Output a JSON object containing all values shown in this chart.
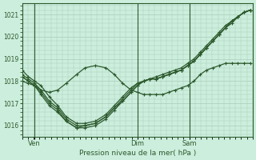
{
  "bg_color": "#cceedd",
  "grid_color": "#aaccbb",
  "line_color": "#2d5a2d",
  "xlabel": "Pression niveau de la mer( hPa )",
  "ylim": [
    1015.5,
    1021.5
  ],
  "yticks": [
    1016,
    1017,
    1018,
    1019,
    1020,
    1021
  ],
  "xtick_labels": [
    "Ven",
    "Dim",
    "Sam"
  ],
  "xtick_x": [
    6,
    55,
    80
  ],
  "xlim": [
    0,
    110
  ],
  "series": [
    {
      "x": [
        0,
        3,
        6,
        9,
        13,
        17,
        21,
        26,
        30,
        35,
        40,
        44,
        48,
        52,
        55,
        58,
        61,
        64,
        67,
        70,
        73,
        76,
        79,
        82,
        85,
        88,
        91,
        94,
        97,
        100,
        103,
        106,
        109
      ],
      "y": [
        1018.5,
        1018.2,
        1018.0,
        1017.8,
        1017.3,
        1016.9,
        1016.4,
        1016.1,
        1016.1,
        1016.2,
        1016.5,
        1016.9,
        1017.3,
        1017.7,
        1017.9,
        1018.0,
        1018.1,
        1018.2,
        1018.3,
        1018.4,
        1018.5,
        1018.6,
        1018.8,
        1019.0,
        1019.3,
        1019.6,
        1019.9,
        1020.2,
        1020.5,
        1020.7,
        1020.9,
        1021.1,
        1021.2
      ]
    },
    {
      "x": [
        0,
        3,
        6,
        9,
        13,
        17,
        21,
        26,
        30,
        35,
        40,
        44,
        48,
        52,
        55,
        58,
        61,
        64,
        67,
        70,
        73,
        76,
        79,
        82,
        85,
        88,
        91,
        94,
        97,
        100,
        103,
        106,
        109
      ],
      "y": [
        1018.3,
        1018.1,
        1017.9,
        1017.6,
        1017.1,
        1016.8,
        1016.3,
        1016.0,
        1016.0,
        1016.1,
        1016.4,
        1016.8,
        1017.2,
        1017.6,
        1017.9,
        1018.0,
        1018.1,
        1018.1,
        1018.2,
        1018.3,
        1018.4,
        1018.5,
        1018.7,
        1018.9,
        1019.2,
        1019.5,
        1019.8,
        1020.1,
        1020.4,
        1020.6,
        1020.9,
        1021.1,
        1021.2
      ]
    },
    {
      "x": [
        0,
        3,
        6,
        9,
        13,
        17,
        21,
        26,
        30,
        35,
        40,
        44,
        48,
        52,
        55,
        58,
        61,
        64,
        67,
        70,
        73,
        76,
        79,
        82,
        85,
        88,
        91,
        94,
        97,
        100,
        103,
        106,
        109
      ],
      "y": [
        1018.2,
        1018.0,
        1017.8,
        1017.5,
        1017.0,
        1016.7,
        1016.2,
        1015.9,
        1016.0,
        1016.1,
        1016.4,
        1016.8,
        1017.1,
        1017.5,
        1017.8,
        1018.0,
        1018.1,
        1018.1,
        1018.2,
        1018.3,
        1018.4,
        1018.5,
        1018.7,
        1018.9,
        1019.2,
        1019.5,
        1019.8,
        1020.1,
        1020.4,
        1020.7,
        1020.9,
        1021.1,
        1021.2
      ]
    },
    {
      "x": [
        0,
        3,
        6,
        9,
        13,
        17,
        21,
        26,
        30,
        35,
        40,
        44,
        48,
        52,
        55,
        58,
        61,
        64,
        67,
        70,
        73,
        76,
        79,
        82,
        85,
        88,
        91,
        94,
        97,
        100,
        103,
        106,
        109
      ],
      "y": [
        1018.2,
        1018.0,
        1017.8,
        1017.4,
        1016.9,
        1016.6,
        1016.2,
        1015.9,
        1015.9,
        1016.0,
        1016.3,
        1016.7,
        1017.1,
        1017.5,
        1017.8,
        1018.0,
        1018.1,
        1018.1,
        1018.2,
        1018.3,
        1018.4,
        1018.5,
        1018.7,
        1018.9,
        1019.2,
        1019.5,
        1019.8,
        1020.1,
        1020.4,
        1020.7,
        1020.9,
        1021.1,
        1021.2
      ]
    },
    {
      "x": [
        0,
        3,
        6,
        9,
        13,
        17,
        21,
        26,
        30,
        35,
        40,
        44,
        48,
        52,
        55,
        58,
        61,
        64,
        67,
        70,
        73,
        76,
        79,
        82,
        85,
        88,
        91,
        94,
        97,
        100,
        103,
        106,
        109
      ],
      "y": [
        1018.0,
        1017.9,
        1017.8,
        1017.6,
        1017.5,
        1017.6,
        1017.9,
        1018.3,
        1018.6,
        1018.7,
        1018.6,
        1018.3,
        1017.9,
        1017.6,
        1017.5,
        1017.4,
        1017.4,
        1017.4,
        1017.4,
        1017.5,
        1017.6,
        1017.7,
        1017.8,
        1018.0,
        1018.3,
        1018.5,
        1018.6,
        1018.7,
        1018.8,
        1018.8,
        1018.8,
        1018.8,
        1018.8
      ]
    }
  ],
  "vline_x": [
    6,
    55,
    80
  ],
  "marker": "+",
  "marker_size": 3.5,
  "linewidth": 0.9
}
